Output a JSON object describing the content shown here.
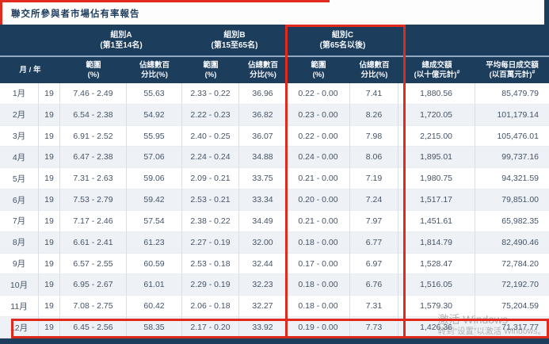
{
  "page": {
    "title": "聯交所參與者市場佔有率報告"
  },
  "colors": {
    "header_navy": "#1d3d5d",
    "annotation_red": "#e02a1e",
    "row_stripe": "#eef1f6",
    "body_text": "#44546a"
  },
  "table": {
    "group_headers": [
      {
        "name": "組別A",
        "rank": "(第1至14名)"
      },
      {
        "name": "組別B",
        "rank": "(第15至65名)"
      },
      {
        "name": "組別C",
        "rank": "(第65名以後)"
      }
    ],
    "column_headers": {
      "month_year": "月 / 年",
      "range_line1": "範圍",
      "range_line2": "(%)",
      "share_line1": "佔總數百",
      "share_line2": "分比(%)",
      "total_line1": "總成交額",
      "total_line2": "(以十億元計)",
      "avg_line1": "平均每日成交額",
      "avg_line2": "(以百萬元計)",
      "superscript": "#"
    },
    "rows": [
      {
        "month": "1月",
        "year": "19",
        "a_range": "7.46 - 2.49",
        "a_share": "55.63",
        "b_range": "2.33 - 0.22",
        "b_share": "36.96",
        "c_range": "0.22 - 0.00",
        "c_share": "7.41",
        "total": "1,880.56",
        "avg_daily": "85,479.79"
      },
      {
        "month": "2月",
        "year": "19",
        "a_range": "6.54 - 2.38",
        "a_share": "54.92",
        "b_range": "2.22 - 0.23",
        "b_share": "36.82",
        "c_range": "0.23 - 0.00",
        "c_share": "8.26",
        "total": "1,720.05",
        "avg_daily": "101,179.14"
      },
      {
        "month": "3月",
        "year": "19",
        "a_range": "6.91 - 2.52",
        "a_share": "55.95",
        "b_range": "2.40 - 0.25",
        "b_share": "36.07",
        "c_range": "0.22 - 0.00",
        "c_share": "7.98",
        "total": "2,215.00",
        "avg_daily": "105,476.01"
      },
      {
        "month": "4月",
        "year": "19",
        "a_range": "6.47 - 2.38",
        "a_share": "57.06",
        "b_range": "2.24 - 0.24",
        "b_share": "34.88",
        "c_range": "0.24 - 0.00",
        "c_share": "8.06",
        "total": "1,895.01",
        "avg_daily": "99,737.16"
      },
      {
        "month": "5月",
        "year": "19",
        "a_range": "7.31 - 2.63",
        "a_share": "59.06",
        "b_range": "2.09 - 0.21",
        "b_share": "33.75",
        "c_range": "0.21 - 0.00",
        "c_share": "7.19",
        "total": "1,980.75",
        "avg_daily": "94,321.59"
      },
      {
        "month": "6月",
        "year": "19",
        "a_range": "7.53 - 2.79",
        "a_share": "59.42",
        "b_range": "2.53 - 0.21",
        "b_share": "33.34",
        "c_range": "0.20 - 0.00",
        "c_share": "7.24",
        "total": "1,517.17",
        "avg_daily": "79,851.00"
      },
      {
        "month": "7月",
        "year": "19",
        "a_range": "7.17 - 2.46",
        "a_share": "57.54",
        "b_range": "2.38 - 0.22",
        "b_share": "34.49",
        "c_range": "0.21 - 0.00",
        "c_share": "7.97",
        "total": "1,451.61",
        "avg_daily": "65,982.35"
      },
      {
        "month": "8月",
        "year": "19",
        "a_range": "6.61 - 2.41",
        "a_share": "61.23",
        "b_range": "2.27 - 0.19",
        "b_share": "32.00",
        "c_range": "0.18 - 0.00",
        "c_share": "6.77",
        "total": "1,814.79",
        "avg_daily": "82,490.46"
      },
      {
        "month": "9月",
        "year": "19",
        "a_range": "6.57 - 2.55",
        "a_share": "60.59",
        "b_range": "2.53 - 0.18",
        "b_share": "32.44",
        "c_range": "0.17 - 0.00",
        "c_share": "6.97",
        "total": "1,528.47",
        "avg_daily": "72,784.20"
      },
      {
        "month": "10月",
        "year": "19",
        "a_range": "6.95 - 2.67",
        "a_share": "61.01",
        "b_range": "2.29 - 0.19",
        "b_share": "32.23",
        "c_range": "0.18 - 0.00",
        "c_share": "6.76",
        "total": "1,516.05",
        "avg_daily": "72,192.70"
      },
      {
        "month": "11月",
        "year": "19",
        "a_range": "7.08 - 2.75",
        "a_share": "60.42",
        "b_range": "2.06 - 0.18",
        "b_share": "32.27",
        "c_range": "0.18 - 0.00",
        "c_share": "7.31",
        "total": "1,579.30",
        "avg_daily": "75,204.59"
      },
      {
        "month": "12月",
        "year": "19",
        "a_range": "6.45 - 2.56",
        "a_share": "58.35",
        "b_range": "2.17 - 0.20",
        "b_share": "33.92",
        "c_range": "0.19 - 0.00",
        "c_share": "7.73",
        "total": "1,426.36",
        "avg_daily": "71,317.77"
      }
    ]
  },
  "watermark": {
    "line1": "激活 Windows",
    "line2": "转到“设置”以激活 Windows。"
  }
}
